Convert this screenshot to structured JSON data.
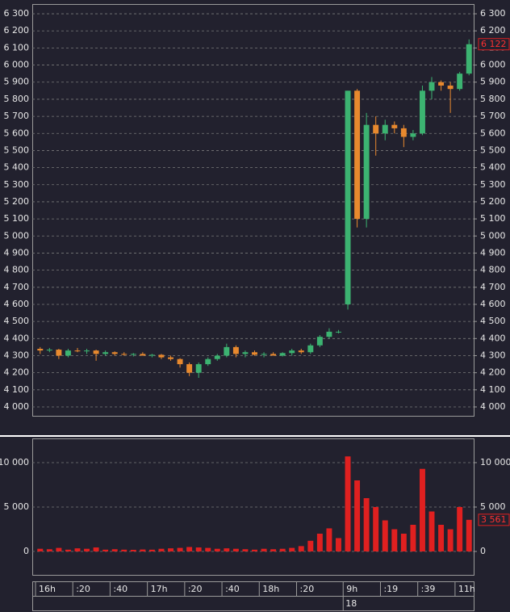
{
  "chart_data": [
    {
      "type": "candlestick",
      "categories": [
        "16h",
        null,
        null,
        null,
        ":20",
        null,
        null,
        null,
        ":40",
        null,
        null,
        null,
        "17h",
        null,
        null,
        null,
        ":20",
        null,
        null,
        null,
        ":40",
        null,
        null,
        null,
        "18h",
        null,
        null,
        null,
        ":20",
        null,
        null,
        null,
        null,
        "9h",
        null,
        null,
        null,
        ":19",
        null,
        null,
        null,
        ":39",
        null,
        null,
        null,
        "11h",
        null
      ],
      "date_label": "18",
      "open": [
        4340,
        4330,
        4335,
        4300,
        4330,
        4325,
        4330,
        4310,
        4320,
        4310,
        4305,
        4310,
        4300,
        4305,
        4290,
        4280,
        4250,
        4200,
        4250,
        4280,
        4300,
        4350,
        4310,
        4320,
        4305,
        4310,
        4300,
        4315,
        4330,
        4320,
        4360,
        4410,
        4440,
        4600,
        5850,
        5100,
        5650,
        5600,
        5650,
        5630,
        5580,
        5600,
        5850,
        5900,
        5880,
        5860,
        5950
      ],
      "high": [
        4350,
        4345,
        4340,
        4340,
        4345,
        4340,
        4335,
        4330,
        4325,
        4320,
        4315,
        4320,
        4310,
        4310,
        4300,
        4285,
        4260,
        4260,
        4290,
        4310,
        4370,
        4360,
        4330,
        4330,
        4320,
        4320,
        4320,
        4340,
        4340,
        4370,
        4420,
        4460,
        4450,
        5850,
        5860,
        5720,
        5700,
        5680,
        5670,
        5650,
        5620,
        5880,
        5930,
        5910,
        5900,
        5960,
        6150
      ],
      "low": [
        4310,
        4320,
        4280,
        4290,
        4320,
        4310,
        4270,
        4300,
        4300,
        4300,
        4295,
        4300,
        4290,
        4280,
        4270,
        4230,
        4180,
        4170,
        4240,
        4270,
        4290,
        4290,
        4290,
        4300,
        4290,
        4300,
        4295,
        4300,
        4310,
        4310,
        4350,
        4400,
        4430,
        4570,
        5050,
        5050,
        5470,
        5560,
        5600,
        5520,
        5560,
        5590,
        5800,
        5850,
        5720,
        5850,
        5940
      ],
      "close": [
        4330,
        4335,
        4300,
        4330,
        4325,
        4330,
        4310,
        4320,
        4310,
        4305,
        4310,
        4300,
        4305,
        4290,
        4280,
        4250,
        4200,
        4250,
        4280,
        4300,
        4350,
        4310,
        4320,
        4305,
        4310,
        4300,
        4315,
        4330,
        4320,
        4360,
        4410,
        4440,
        4440,
        5850,
        5100,
        5650,
        5600,
        5650,
        5630,
        5580,
        5600,
        5850,
        5900,
        5880,
        5860,
        5950,
        6122
      ],
      "up_color": "#3cb371",
      "down_color": "#e8892e",
      "ylim": [
        3948,
        6357
      ],
      "yticks": [
        {
          "value": 4000,
          "label": "4 000"
        },
        {
          "value": 4100,
          "label": "4 100"
        },
        {
          "value": 4200,
          "label": "4 200"
        },
        {
          "value": 4300,
          "label": "4 300"
        },
        {
          "value": 4400,
          "label": "4 400"
        },
        {
          "value": 4500,
          "label": "4 500"
        },
        {
          "value": 4600,
          "label": "4 600"
        },
        {
          "value": 4700,
          "label": "4 700"
        },
        {
          "value": 4800,
          "label": "4 800"
        },
        {
          "value": 4900,
          "label": "4 900"
        },
        {
          "value": 5000,
          "label": "5 000"
        },
        {
          "value": 5100,
          "label": "5 100"
        },
        {
          "value": 5200,
          "label": "5 200"
        },
        {
          "value": 5300,
          "label": "5 300"
        },
        {
          "value": 5400,
          "label": "5 400"
        },
        {
          "value": 5500,
          "label": "5 500"
        },
        {
          "value": 5600,
          "label": "5 600"
        },
        {
          "value": 5700,
          "label": "5 700"
        },
        {
          "value": 5800,
          "label": "5 800"
        },
        {
          "value": 5900,
          "label": "5 900"
        },
        {
          "value": 6000,
          "label": "6 000"
        },
        {
          "value": 6100,
          "label": "6 100"
        },
        {
          "value": 6200,
          "label": "6 200"
        },
        {
          "value": 6300,
          "label": "6 300"
        }
      ],
      "last": {
        "value": 6122,
        "label": "6 122"
      },
      "grid": true
    },
    {
      "type": "bar",
      "values": [
        300,
        250,
        400,
        200,
        350,
        300,
        450,
        200,
        250,
        200,
        180,
        220,
        200,
        300,
        350,
        400,
        500,
        450,
        400,
        300,
        350,
        300,
        250,
        200,
        300,
        250,
        300,
        400,
        600,
        1200,
        2000,
        2600,
        1500,
        10700,
        8000,
        6000,
        5000,
        3500,
        2500,
        2000,
        3000,
        9300,
        4500,
        3000,
        2500,
        5000,
        3561
      ],
      "color": "#e02020",
      "ylim": [
        -2636,
        12727
      ],
      "yticks": [
        0,
        {
          "value": 5000,
          "label": "5 000"
        },
        {
          "value": 10000,
          "label": "10 000"
        }
      ],
      "last": {
        "value": 3561,
        "label": "3 561"
      },
      "grid": true
    }
  ]
}
